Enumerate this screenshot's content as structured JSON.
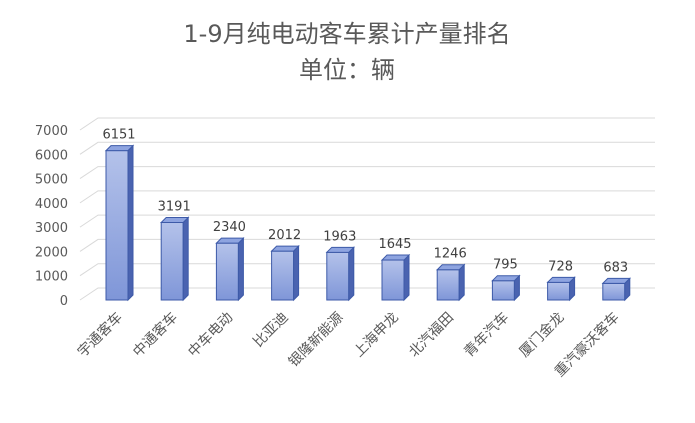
{
  "chart_data": {
    "type": "bar",
    "title": "1-9月纯电动客车累计产量排名",
    "subtitle": "单位：辆",
    "categories": [
      "宇通客车",
      "中通客车",
      "中车电动",
      "比亚迪",
      "银隆新能源",
      "上海申龙",
      "北汽福田",
      "青年汽车",
      "厦门金龙",
      "重汽豪沃客车"
    ],
    "values": [
      6151,
      3191,
      2340,
      2012,
      1963,
      1645,
      1246,
      795,
      728,
      683
    ],
    "ylim": [
      0,
      7000
    ],
    "yticks": [
      0,
      1000,
      2000,
      3000,
      4000,
      5000,
      6000,
      7000
    ],
    "grid": true,
    "legend": "none",
    "colors": {
      "bar_front_top": "#b4c2ea",
      "bar_front_bottom": "#7f96d8",
      "bar_side": "#4a63b0",
      "bar_top": "#8ea4e0",
      "bar_edge": "#3d5aa8",
      "grid": "#d9d9d9"
    }
  }
}
